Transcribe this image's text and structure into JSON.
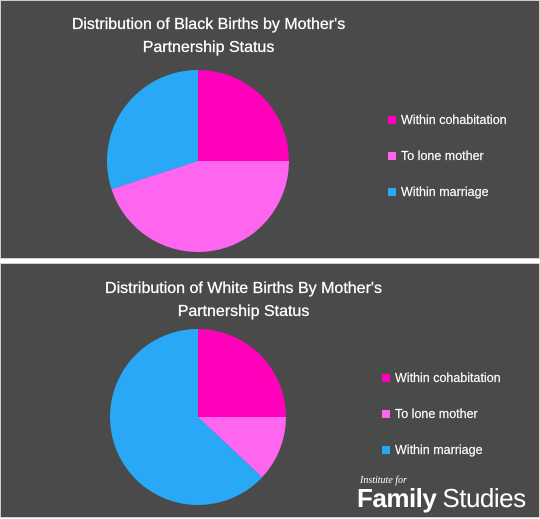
{
  "chart_data": [
    {
      "type": "pie",
      "title": [
        "Distribution of Black Births by Mother's",
        "Partnership Status"
      ],
      "slices": [
        {
          "label": "Within cohabitation",
          "value": 25,
          "color": "#ff00bb"
        },
        {
          "label": "To lone mother",
          "value": 45,
          "color": "#ff66f0"
        },
        {
          "label": "Within marriage",
          "value": 30,
          "color": "#28a8f5"
        }
      ],
      "legend_position": "right"
    },
    {
      "type": "pie",
      "title": [
        "Distribution of White Births By Mother's",
        "Partnership Status"
      ],
      "slices": [
        {
          "label": "Within cohabitation",
          "value": 25,
          "color": "#ff00bb"
        },
        {
          "label": "To lone mother",
          "value": 12,
          "color": "#ff66f0"
        },
        {
          "label": "Within marriage",
          "value": 63,
          "color": "#28a8f5"
        }
      ],
      "legend_position": "right"
    }
  ],
  "branding": {
    "line1": "Institute for",
    "word1": "Family",
    "word2": "Studies"
  }
}
